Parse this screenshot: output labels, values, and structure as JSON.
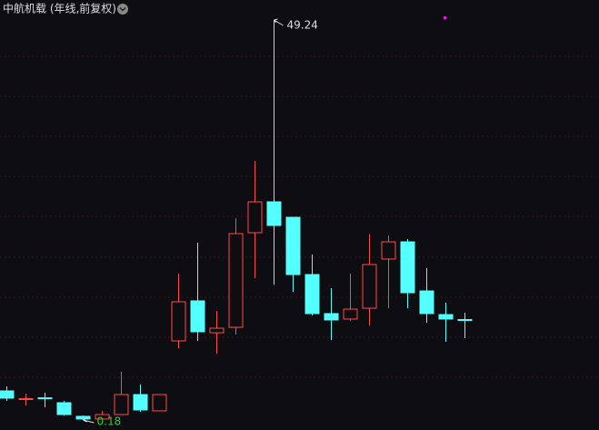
{
  "chart_data": {
    "type": "candlestick",
    "title": "中航机载 (年线,前复权)",
    "categories": [
      null,
      null,
      null,
      null,
      null,
      null,
      null,
      null,
      null,
      null,
      null,
      null,
      null,
      null,
      null,
      null,
      null,
      null,
      null,
      null,
      null,
      null,
      null,
      null,
      null
    ],
    "open": [
      3.75,
      2.74,
      2.9,
      2.3,
      0.63,
      0.3,
      0.85,
      3.3,
      1.3,
      9.88,
      14.79,
      10.88,
      11.55,
      23.15,
      26.94,
      25.04,
      18.02,
      13.23,
      12.56,
      13.89,
      19.92,
      22.03,
      16.01,
      13.11,
      12.5
    ],
    "high": [
      4.31,
      3.41,
      3.53,
      2.52,
      0.74,
      1.3,
      6.09,
      4.53,
      3.3,
      18.13,
      21.92,
      13.56,
      24.93,
      31.96,
      49.24,
      25.04,
      20.47,
      16.35,
      18.13,
      22.93,
      22.81,
      22.37,
      18.8,
      14.56,
      13.34
    ],
    "low": [
      2.52,
      1.96,
      1.74,
      0.74,
      0.18,
      0.25,
      0.85,
      1.18,
      1.3,
      8.99,
      9.88,
      8.32,
      10.66,
      17.57,
      16.79,
      15.9,
      13.0,
      9.99,
      12.33,
      11.78,
      13.89,
      13.89,
      12.11,
      9.77,
      10.22
    ],
    "close": [
      2.86,
      2.8,
      2.86,
      0.85,
      0.3,
      0.85,
      3.3,
      1.41,
      3.3,
      14.68,
      11.0,
      11.44,
      23.04,
      26.94,
      24.04,
      18.02,
      13.23,
      12.45,
      13.78,
      19.25,
      22.03,
      15.79,
      13.23,
      12.56,
      12.45
    ],
    "up_color": "#ff4a4a",
    "down_color": "#54ffff",
    "high_label_color": "#dddddd",
    "low_label_color": "#33cc33"
  }
}
